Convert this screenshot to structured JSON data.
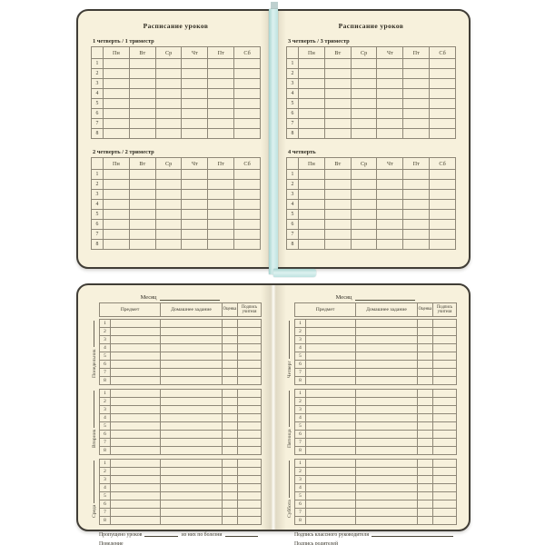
{
  "background_color": "#ffffff",
  "book": {
    "page_color": "#f7f1dc",
    "cover_color": "#403d36",
    "line_color": "#8e8777",
    "ribbon_color": "#cfe9e6"
  },
  "schedule_spread": {
    "page_title": "Расписание уроков",
    "days": [
      "Пн",
      "Вт",
      "Ср",
      "Чт",
      "Пт",
      "Сб"
    ],
    "lesson_numbers": [
      "1",
      "2",
      "3",
      "4",
      "5",
      "6",
      "7",
      "8"
    ],
    "sections": [
      {
        "label": "1 четверть  /  1 триместр"
      },
      {
        "label": "2 четверть  /  2 триместр"
      },
      {
        "label": "3 четверть  /  3 триместр"
      },
      {
        "label": "4 четверть"
      }
    ]
  },
  "diary_spread": {
    "month_label": "Месяц",
    "columns": {
      "subject": "Предмет",
      "homework": "Домашнее задание",
      "grade": "Оценка",
      "teacher_signature": "Подпись учителя"
    },
    "lesson_numbers": [
      "1",
      "2",
      "3",
      "4",
      "5",
      "6",
      "7",
      "8"
    ],
    "days": [
      "Понедельник",
      "Вторник",
      "Среда",
      "Четверг",
      "Пятница",
      "Суббота"
    ],
    "left_footer": [
      {
        "segments": [
          "Пропущено уроков",
          "из них по болезни"
        ]
      },
      {
        "segments": [
          "Поведение"
        ]
      }
    ],
    "right_footer": [
      {
        "segments": [
          "Подпись классного руководителя"
        ]
      },
      {
        "segments": [
          "Подпись родителей"
        ]
      }
    ]
  }
}
